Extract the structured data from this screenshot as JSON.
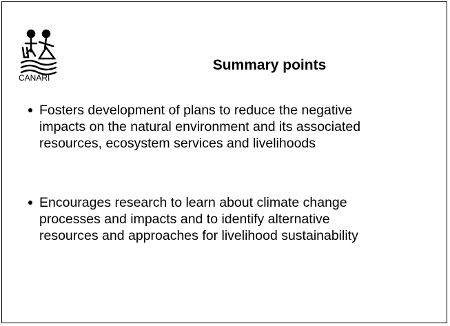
{
  "logo": {
    "text": "CANARI"
  },
  "title": "Summary points",
  "bullets": [
    "Fosters development of plans to reduce the negative impacts on the natural environment and its associated resources, ecosystem services and livelihoods",
    "Encourages research to learn about climate change processes and impacts and to identify alternative resources and approaches for livelihood sustainability"
  ]
}
